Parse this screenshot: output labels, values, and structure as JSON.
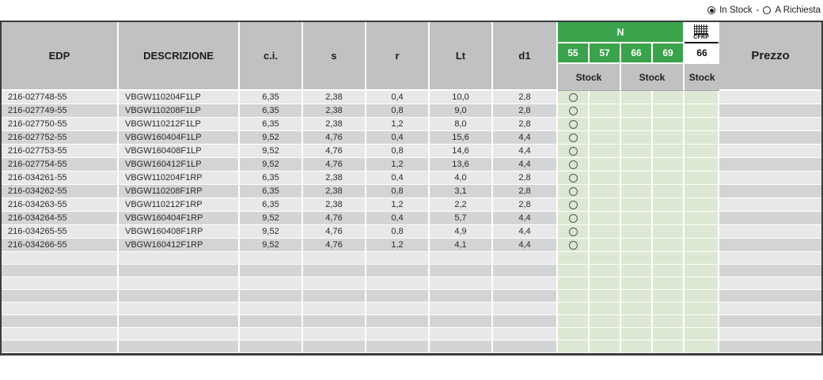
{
  "legend": {
    "in_stock_label": "In Stock",
    "separator": "-",
    "a_richiesta_label": "A Richiesta",
    "selected_option": "In Stock"
  },
  "table": {
    "headers": {
      "edp": "EDP",
      "descrizione": "DESCRIZIONE",
      "ci": "c.i.",
      "s": "s",
      "r": "r",
      "lt": "Lt",
      "d1": "d1",
      "grade_group": "N",
      "grade_55": "55",
      "grade_57": "57",
      "grade_66": "66",
      "grade_69": "69",
      "cfrp_label": "CFRP",
      "cfrp_grade": "66",
      "stock_label_1": "Stock",
      "stock_label_2": "Stock",
      "stock_label_3": "Stock",
      "prezzo": "Prezzo"
    },
    "stock_legend_meaning": {
      "circle_outline": "A Richiesta",
      "circle_filled": "In Stock"
    },
    "rows": [
      {
        "edp": "216-027748-55",
        "descrizione": "VBGW110204F1LP",
        "ci": "6,35",
        "s": "2,38",
        "r": "0,4",
        "lt": "10,0",
        "d1": "2,8",
        "stock": [
          "richiesta",
          "",
          "",
          "",
          ""
        ],
        "prezzo": ""
      },
      {
        "edp": "216-027749-55",
        "descrizione": "VBGW110208F1LP",
        "ci": "6,35",
        "s": "2,38",
        "r": "0,8",
        "lt": "9,0",
        "d1": "2,8",
        "stock": [
          "richiesta",
          "",
          "",
          "",
          ""
        ],
        "prezzo": ""
      },
      {
        "edp": "216-027750-55",
        "descrizione": "VBGW110212F1LP",
        "ci": "6,35",
        "s": "2,38",
        "r": "1,2",
        "lt": "8,0",
        "d1": "2,8",
        "stock": [
          "richiesta",
          "",
          "",
          "",
          ""
        ],
        "prezzo": ""
      },
      {
        "edp": "216-027752-55",
        "descrizione": "VBGW160404F1LP",
        "ci": "9,52",
        "s": "4,76",
        "r": "0,4",
        "lt": "15,6",
        "d1": "4,4",
        "stock": [
          "richiesta",
          "",
          "",
          "",
          ""
        ],
        "prezzo": ""
      },
      {
        "edp": "216-027753-55",
        "descrizione": "VBGW160408F1LP",
        "ci": "9,52",
        "s": "4,76",
        "r": "0,8",
        "lt": "14,6",
        "d1": "4,4",
        "stock": [
          "richiesta",
          "",
          "",
          "",
          ""
        ],
        "prezzo": ""
      },
      {
        "edp": "216-027754-55",
        "descrizione": "VBGW160412F1LP",
        "ci": "9,52",
        "s": "4,76",
        "r": "1,2",
        "lt": "13,6",
        "d1": "4,4",
        "stock": [
          "richiesta",
          "",
          "",
          "",
          ""
        ],
        "prezzo": ""
      },
      {
        "edp": "216-034261-55",
        "descrizione": "VBGW110204F1RP",
        "ci": "6,35",
        "s": "2,38",
        "r": "0,4",
        "lt": "4,0",
        "d1": "2,8",
        "stock": [
          "richiesta",
          "",
          "",
          "",
          ""
        ],
        "prezzo": ""
      },
      {
        "edp": "216-034262-55",
        "descrizione": "VBGW110208F1RP",
        "ci": "6,35",
        "s": "2,38",
        "r": "0,8",
        "lt": "3,1",
        "d1": "2,8",
        "stock": [
          "richiesta",
          "",
          "",
          "",
          ""
        ],
        "prezzo": ""
      },
      {
        "edp": "216-034263-55",
        "descrizione": "VBGW110212F1RP",
        "ci": "6,35",
        "s": "2,38",
        "r": "1,2",
        "lt": "2,2",
        "d1": "2,8",
        "stock": [
          "richiesta",
          "",
          "",
          "",
          ""
        ],
        "prezzo": ""
      },
      {
        "edp": "216-034264-55",
        "descrizione": "VBGW160404F1RP",
        "ci": "9,52",
        "s": "4,76",
        "r": "0,4",
        "lt": "5,7",
        "d1": "4,4",
        "stock": [
          "richiesta",
          "",
          "",
          "",
          ""
        ],
        "prezzo": ""
      },
      {
        "edp": "216-034265-55",
        "descrizione": "VBGW160408F1RP",
        "ci": "9,52",
        "s": "4,76",
        "r": "0,8",
        "lt": "4,9",
        "d1": "4,4",
        "stock": [
          "richiesta",
          "",
          "",
          "",
          ""
        ],
        "prezzo": ""
      },
      {
        "edp": "216-034266-55",
        "descrizione": "VBGW160412F1RP",
        "ci": "9,52",
        "s": "4,76",
        "r": "1,2",
        "lt": "4,1",
        "d1": "4,4",
        "stock": [
          "richiesta",
          "",
          "",
          "",
          ""
        ],
        "prezzo": ""
      }
    ],
    "empty_row_count": 8
  },
  "colors": {
    "header_green": "#3aa34b",
    "stock_green": "#dce8d3",
    "header_gray": "#c0c1c3",
    "row_light": "#e8e8ea",
    "row_dark": "#d3d4d6"
  }
}
